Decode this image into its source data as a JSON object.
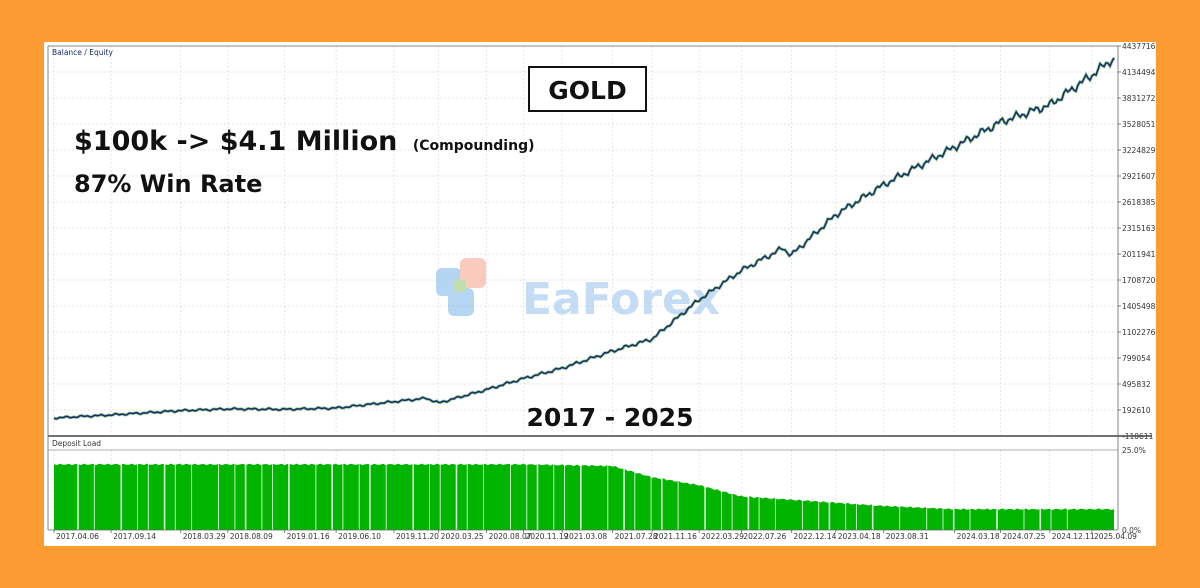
{
  "chart_data": [
    {
      "type": "line",
      "panel_label": "Balance / Equity",
      "title": "GOLD",
      "headline": "$100k -> $4.1 Million",
      "headline_note": "(Compounding)",
      "win_rate_text": "87% Win Rate",
      "period_text": "2017 - 2025",
      "watermark": "EaForex",
      "y_tick_labels": [
        "4437716",
        "4134494",
        "3831272",
        "3528051",
        "3224829",
        "2921607",
        "2618385",
        "2315163",
        "2011941",
        "1708720",
        "1405498",
        "1102276",
        "799054",
        "495832",
        "192610",
        "-110611"
      ],
      "ylim": [
        -110611,
        4437716
      ],
      "grid": true,
      "colors": {
        "balance": "#1a2a6c",
        "equity": "#2e9e2e",
        "grid": "#dcdcdc",
        "background": "#FD9B33"
      },
      "series": [
        {
          "name": "Balance",
          "points": [
            [
              "2017.04.06",
              100000
            ],
            [
              "2017.09.14",
              135000
            ],
            [
              "2018.03.29",
              185000
            ],
            [
              "2018.08.09",
              205000
            ],
            [
              "2019.01.16",
              200000
            ],
            [
              "2019.06.10",
              215000
            ],
            [
              "2019.11.20",
              290000
            ],
            [
              "2020.02.20",
              330000
            ],
            [
              "2020.03.25",
              275000
            ],
            [
              "2020.08.07",
              430000
            ],
            [
              "2020.11.19",
              560000
            ],
            [
              "2021.03.08",
              680000
            ],
            [
              "2021.07.28",
              880000
            ],
            [
              "2021.11.16",
              1020000
            ],
            [
              "2022.03.29",
              1480000
            ],
            [
              "2022.07.26",
              1820000
            ],
            [
              "2022.11.20",
              2080000
            ],
            [
              "2022.12.14",
              2000000
            ],
            [
              "2023.04.18",
              2470000
            ],
            [
              "2023.08.31",
              2820000
            ],
            [
              "2024.03.18",
              3260000
            ],
            [
              "2024.07.25",
              3550000
            ],
            [
              "2024.12.11",
              3750000
            ],
            [
              "2025.04.09",
              4100000
            ],
            [
              "2025.06.10",
              4300000
            ]
          ]
        }
      ]
    },
    {
      "type": "bar",
      "panel_label": "Deposit Load",
      "y_tick_labels": [
        "25.0%",
        "0.0%"
      ],
      "ylim": [
        0,
        25
      ],
      "x_tick_labels": [
        "2017.04.06",
        "2017.09.14",
        "2018.03.29",
        "2018.08.09",
        "2019.01.16",
        "2019.06.10",
        "2019.11.20",
        "2020.03.25",
        "2020.08.07",
        "2020.11.19",
        "2021.03.08",
        "2021.07.28",
        "2021.11.16",
        "2022.03.29",
        "2022.07.26",
        "2022.12.14",
        "2023.04.18",
        "2023.08.31",
        "2024.03.18",
        "2024.07.25",
        "2024.12.11",
        "2025.04.09"
      ],
      "colors": {
        "fill": "#00b400"
      },
      "series": [
        {
          "name": "Deposit Load",
          "points": [
            [
              "2017.04.06",
              20.5
            ],
            [
              "2018.08.09",
              20.5
            ],
            [
              "2020.11.19",
              20.5
            ],
            [
              "2021.07.28",
              20.0
            ],
            [
              "2021.11.16",
              16.5
            ],
            [
              "2022.03.29",
              14.0
            ],
            [
              "2022.07.26",
              10.5
            ],
            [
              "2023.04.18",
              8.5
            ],
            [
              "2023.08.31",
              7.5
            ],
            [
              "2024.03.18",
              6.5
            ],
            [
              "2024.12.11",
              6.5
            ],
            [
              "2025.06.10",
              6.5
            ]
          ]
        }
      ]
    }
  ]
}
